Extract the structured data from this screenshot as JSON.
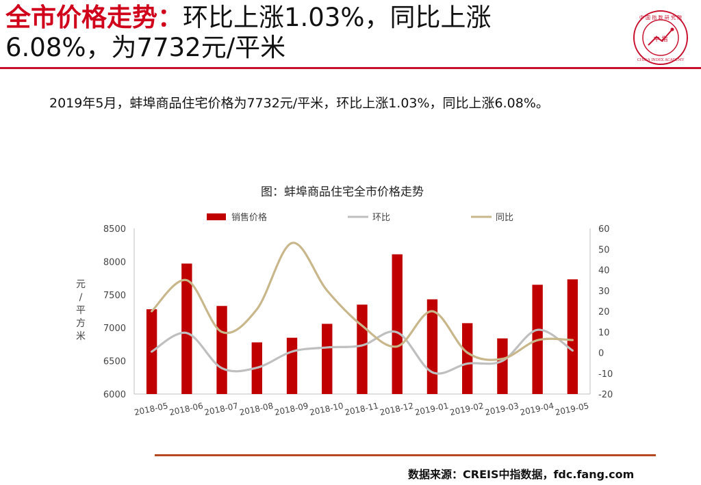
{
  "header": {
    "title_strong": "全市价格走势：",
    "title_rest_line1": "环比上涨1.03%，同比上涨",
    "title_line2": "6.08%，为7732元/平米"
  },
  "logo": {
    "center_text": "中 指",
    "ring_text": "CHINA INDEX ACADEMY",
    "top_text": "中 国 指 数 研 究 院"
  },
  "summary": "2019年5月，蚌埠商品住宅价格为7732元/平米，环比上涨1.03%，同比上涨6.08%。",
  "source": "数据来源：CREIS中指数据，fdc.fang.com",
  "colors": {
    "accent": "#c8102e",
    "bar": "#c00000",
    "mom": "#bfbfbf",
    "yoy": "#c9b78c",
    "footer_rule": "#b5481e"
  },
  "chart_data": {
    "type": "bar",
    "title": "图：蚌埠商品住宅全市价格走势",
    "categories": [
      "2018-05",
      "2018-06",
      "2018-07",
      "2018-08",
      "2018-09",
      "2018-10",
      "2018-11",
      "2018-12",
      "2019-01",
      "2019-02",
      "2019-03",
      "2019-04",
      "2019-05"
    ],
    "y_left": {
      "label": "元/平方米",
      "min": 6000,
      "max": 8500,
      "ticks": [
        6000,
        6500,
        7000,
        7500,
        8000,
        8500
      ]
    },
    "y_right": {
      "label": "%",
      "min": -20,
      "max": 60,
      "ticks": [
        -20,
        -10,
        0,
        10,
        20,
        30,
        40,
        50,
        60
      ]
    },
    "series": [
      {
        "name": "销售价格",
        "type": "bar",
        "axis": "left",
        "values": [
          7280,
          7970,
          7330,
          6780,
          6850,
          7060,
          7350,
          8110,
          7430,
          7070,
          6840,
          7650,
          7732
        ]
      },
      {
        "name": "环比",
        "type": "line",
        "axis": "right",
        "values": [
          0.5,
          9.5,
          -7.5,
          -7.3,
          0.5,
          2.5,
          3.5,
          9.8,
          -9.5,
          -5.3,
          -4.0,
          11.0,
          1.03
        ]
      },
      {
        "name": "同比",
        "type": "line",
        "axis": "right",
        "values": [
          20,
          35,
          10,
          21,
          53,
          30,
          13,
          3,
          20,
          0,
          -3,
          6,
          6.08
        ]
      }
    ],
    "legend_position": "top",
    "grid": false
  }
}
